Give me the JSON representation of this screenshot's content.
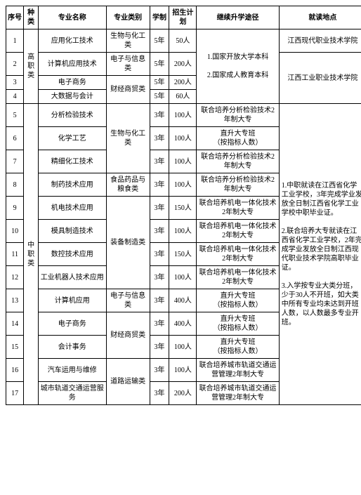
{
  "headers": {
    "xh": "序号",
    "zl": "种类",
    "zymc": "专业名称",
    "zylb": "专业类别",
    "xz": "学制",
    "zsjh": "招生计划",
    "tj": "继续升学途径",
    "dd": "就读地点"
  },
  "zl1": "高职类",
  "zl2": "中职类",
  "r1": {
    "xh": "1",
    "zymc": "应用化工技术",
    "zylb": "生物与化工类",
    "xz": "5年",
    "js": "50人"
  },
  "r2": {
    "xh": "2",
    "zymc": "计算机应用技术",
    "zylb": "电子与信息类",
    "xz": "5年",
    "js": "200人"
  },
  "r3": {
    "xh": "3",
    "zymc": "电子商务",
    "xz": "5年",
    "js": "200人"
  },
  "r4": {
    "xh": "4",
    "zymc": "大数据与会计",
    "xz": "5年",
    "js": "60人"
  },
  "gz_zylb34": "财经商贸类",
  "gz_tj": "1.国家开放大学本科\n\n2.国家成人教育本科",
  "gz_dd1": "江西现代职业技术学院",
  "gz_dd2": "江西工业职业技术学院",
  "r5": {
    "xh": "5",
    "zymc": "分析检验技术",
    "xz": "3年",
    "js": "100人",
    "tj": "联合培养分析检验技术2年制大专"
  },
  "r6": {
    "xh": "6",
    "zymc": "化学工艺",
    "xz": "3年",
    "js": "100人",
    "tj": "直升大专班\n（按指标人数）"
  },
  "r7": {
    "xh": "7",
    "zymc": "精细化工技术",
    "xz": "3年",
    "js": "100人",
    "tj": "联合培养分析检验技术2年制大专"
  },
  "r8": {
    "xh": "8",
    "zymc": "制药技术应用",
    "zylb": "食品药品与粮食类",
    "xz": "3年",
    "js": "100人",
    "tj": "联合培养分析检验技术2年制大专"
  },
  "r9": {
    "xh": "9",
    "zymc": "机电技术应用",
    "xz": "3年",
    "js": "150人",
    "tj": "联合培养机电一体化技术2年制大专"
  },
  "r10": {
    "xh": "10",
    "zymc": "模具制造技术",
    "xz": "3年",
    "js": "100人",
    "tj": "联合培养机电一体化技术2年制大专"
  },
  "r11": {
    "xh": "11",
    "zymc": "数控技术应用",
    "xz": "3年",
    "js": "150人",
    "tj": "联合培养机电一体化技术2年制大专"
  },
  "r12": {
    "xh": "12",
    "zymc": "工业机器人技术应用",
    "xz": "3年",
    "js": "100人",
    "tj": "联合培养机电一体化技术2年制大专"
  },
  "zz_zylb57": "生物与化工类",
  "zz_zylb912": "装备制造类",
  "r13": {
    "xh": "13",
    "zymc": "计算机应用",
    "zylb": "电子与信息类",
    "xz": "3年",
    "js": "400人",
    "tj": "直升大专班\n（按指标人数）"
  },
  "r14": {
    "xh": "14",
    "zymc": "电子商务",
    "xz": "3年",
    "js": "400人",
    "tj": "直升大专班\n（按指标人数）"
  },
  "r15": {
    "xh": "15",
    "zymc": "会计事务",
    "xz": "3年",
    "js": "100人",
    "tj": "直升大专班\n（按指标人数）"
  },
  "zz_zylb1415": "财经商贸类",
  "r16": {
    "xh": "16",
    "zymc": "汽车运用与维修",
    "xz": "3年",
    "js": "100人",
    "tj": "联合培养城市轨道交通运营管理2年制大专"
  },
  "r17": {
    "xh": "17",
    "zymc": "城市轨道交通运营服务",
    "xz": "3年",
    "js": "200人",
    "tj": "联合培养城市轨道交通运营管理2年制大专"
  },
  "zz_zylb1617": "道路运输类",
  "zz_dd": "1.中职就读在江西省化学工业学校，3年完成学业发放全日制江西省化学工业学校中职毕业证。\n\n2.联合培养大专就读在江西省化学工业学校，2年完成学业发放全日制江西现代职业技术学院高职毕业证。\n\n3.入学按专业大类分班，少于30人不开班，如大类中所有专业均未达到开班人数，以人数最多专业开班。",
  "colors": {
    "border": "#000000",
    "text": "#000000",
    "bg": "#ffffff"
  }
}
